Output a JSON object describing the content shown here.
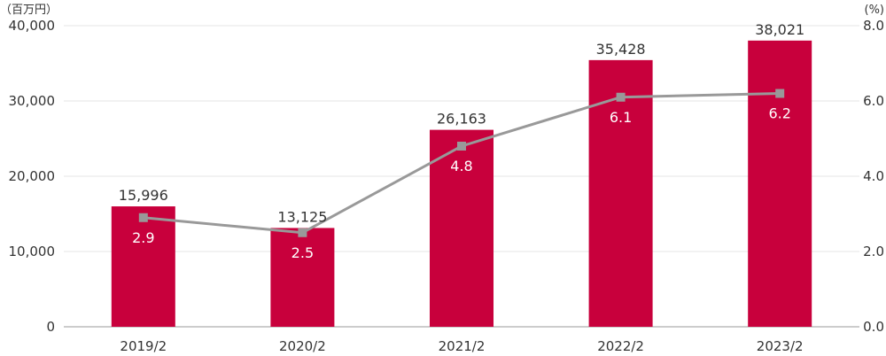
{
  "chart_data": {
    "type": "bar",
    "categories": [
      "2019/2",
      "2020/2",
      "2021/2",
      "2022/2",
      "2023/2"
    ],
    "series": [
      {
        "name": "bars",
        "type": "bar",
        "axis": "left",
        "values": [
          15996,
          13125,
          26163,
          35428,
          38021
        ],
        "labels": [
          "15,996",
          "13,125",
          "26,163",
          "35,428",
          "38,021"
        ],
        "color": "#c8003c"
      },
      {
        "name": "ratio",
        "type": "line",
        "axis": "right",
        "values": [
          2.9,
          2.5,
          4.8,
          6.1,
          6.2
        ],
        "labels": [
          "2.9",
          "2.5",
          "4.8",
          "6.1",
          "6.2"
        ],
        "color": "#999999"
      }
    ],
    "left_axis": {
      "unit": "（百万円）",
      "ylim": [
        0,
        40000
      ],
      "ticks": [
        0,
        10000,
        20000,
        30000,
        40000
      ],
      "tick_labels": [
        "0",
        "10,000",
        "20,000",
        "30,000",
        "40,000"
      ]
    },
    "right_axis": {
      "unit": "(%)",
      "ylim": [
        0,
        8
      ],
      "ticks": [
        0,
        2,
        4,
        6,
        8
      ],
      "tick_labels": [
        "0.0",
        "2.0",
        "4.0",
        "6.0",
        "8.0"
      ]
    },
    "grid": true
  }
}
